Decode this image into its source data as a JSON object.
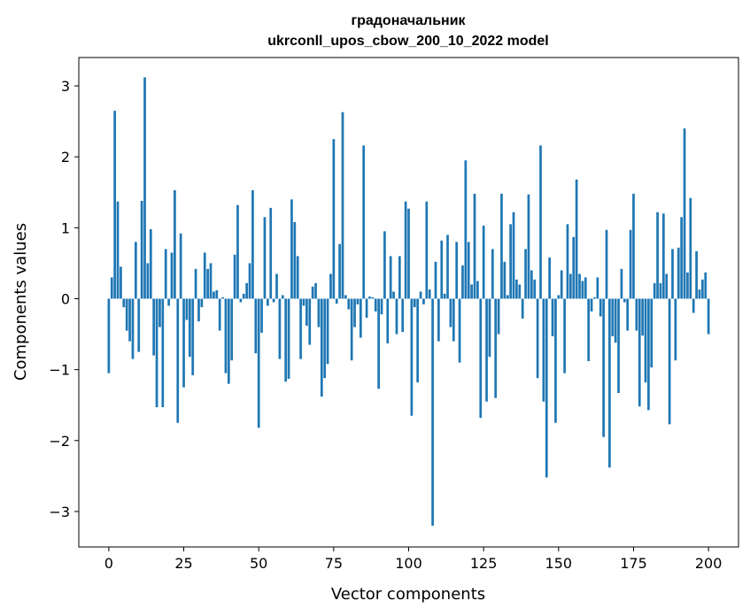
{
  "chart_data": {
    "type": "bar",
    "title_line1": "градоначальник",
    "title_line2": "ukrconll_upos_cbow_200_10_2022 model",
    "xlabel": "Vector components",
    "ylabel": "Components values",
    "xlim": [
      -10,
      210
    ],
    "ylim": [
      -3.5,
      3.4
    ],
    "xticks": [
      0,
      25,
      50,
      75,
      100,
      125,
      150,
      175,
      200
    ],
    "yticks": [
      -3,
      -2,
      -1,
      0,
      1,
      2,
      3
    ],
    "bar_color": "#1f77b4",
    "values": [
      -1.05,
      0.3,
      2.65,
      1.37,
      0.45,
      -0.12,
      -0.45,
      -0.6,
      -0.85,
      0.8,
      -0.75,
      1.38,
      3.12,
      0.5,
      0.98,
      -0.8,
      -1.53,
      -0.4,
      -1.53,
      0.7,
      -0.1,
      0.65,
      1.53,
      -1.75,
      0.92,
      -1.25,
      -0.3,
      -0.82,
      -1.08,
      0.42,
      -0.32,
      -0.12,
      0.65,
      0.42,
      0.5,
      0.1,
      0.12,
      -0.45,
      0.02,
      -1.05,
      -1.2,
      -0.87,
      0.62,
      1.32,
      -0.05,
      0.07,
      0.22,
      0.5,
      1.53,
      -0.77,
      -1.82,
      -0.48,
      1.15,
      -0.1,
      1.28,
      -0.05,
      0.35,
      -0.85,
      0.05,
      -1.17,
      -1.13,
      1.4,
      1.08,
      0.6,
      -0.85,
      -0.1,
      -0.38,
      -0.65,
      0.17,
      0.22,
      -0.4,
      -1.38,
      -1.12,
      -0.92,
      0.35,
      2.25,
      -0.07,
      0.77,
      2.63,
      0.05,
      -0.15,
      -0.87,
      -0.4,
      -0.08,
      -0.55,
      2.16,
      -0.27,
      0.03,
      0.02,
      -0.18,
      -1.27,
      -0.22,
      0.95,
      -0.63,
      0.6,
      0.1,
      -0.5,
      0.6,
      -0.47,
      1.37,
      1.27,
      -1.65,
      -0.12,
      -1.18,
      0.1,
      -0.08,
      1.37,
      0.13,
      -3.2,
      0.52,
      -0.6,
      0.82,
      0.07,
      0.9,
      -0.4,
      -0.6,
      0.8,
      -0.9,
      0.47,
      1.95,
      0.8,
      0.2,
      1.48,
      0.25,
      -1.68,
      1.03,
      -1.45,
      -0.82,
      0.7,
      -1.4,
      -0.5,
      1.48,
      0.52,
      0.05,
      1.05,
      1.22,
      0.27,
      0.2,
      -0.28,
      0.7,
      1.47,
      0.4,
      0.27,
      -1.12,
      2.16,
      -1.45,
      -2.52,
      0.58,
      -0.53,
      -1.75,
      0.05,
      0.4,
      -1.05,
      1.05,
      0.35,
      0.87,
      1.68,
      0.35,
      0.25,
      0.3,
      -0.88,
      -0.18,
      0.02,
      0.3,
      -0.25,
      -1.95,
      0.97,
      -2.38,
      -0.53,
      -0.62,
      -1.33,
      0.42,
      -0.05,
      -0.45,
      0.97,
      1.48,
      -0.45,
      -1.52,
      -0.52,
      -1.18,
      -1.57,
      -0.97,
      0.22,
      1.22,
      0.22,
      1.2,
      0.35,
      -1.77,
      0.7,
      -0.87,
      0.72,
      1.15,
      2.4,
      0.37,
      1.42,
      -0.2,
      0.67,
      0.13,
      0.27,
      0.37,
      -0.5
    ]
  }
}
